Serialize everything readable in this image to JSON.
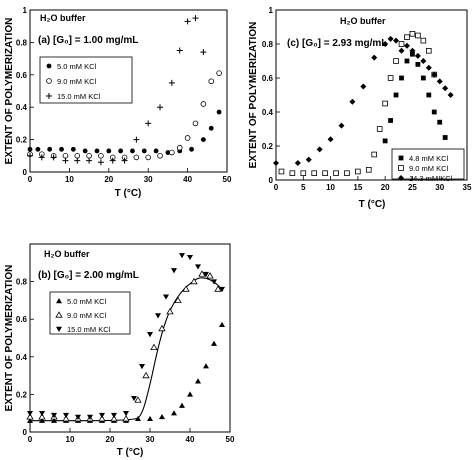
{
  "chart_data": [
    {
      "type": "scatter",
      "panel_label": "(a)",
      "buffer_label": "H₂O buffer",
      "concentration_label": "(a)  [G₀] = 1.00 mg/mL",
      "xlabel": "T (°C)",
      "ylabel": "EXTENT OF POLYMERIZATION",
      "xlim": [
        0,
        50
      ],
      "ylim": [
        0,
        1.0
      ],
      "xticks": [
        "0",
        "10",
        "20",
        "30",
        "40",
        "50"
      ],
      "yticks": [
        "0",
        "0.2",
        "0.4",
        "0.6",
        "0.8",
        "1"
      ],
      "legend_position": "center-left",
      "series": [
        {
          "name": "5.0 mM KCl",
          "marker": "filled-circle",
          "x": [
            0,
            2,
            5,
            8,
            11,
            14,
            17,
            20,
            23,
            26,
            29,
            32,
            35,
            38,
            41,
            44,
            46,
            48
          ],
          "y": [
            0.14,
            0.14,
            0.14,
            0.14,
            0.14,
            0.13,
            0.13,
            0.13,
            0.13,
            0.13,
            0.13,
            0.13,
            0.12,
            0.13,
            0.14,
            0.2,
            0.27,
            0.37
          ]
        },
        {
          "name": "9.0 mM KCl",
          "marker": "open-circle",
          "x": [
            0,
            3,
            6,
            9,
            12,
            15,
            18,
            21,
            24,
            27,
            30,
            33,
            36,
            38,
            40,
            42,
            44,
            46,
            48
          ],
          "y": [
            0.11,
            0.11,
            0.1,
            0.1,
            0.1,
            0.1,
            0.1,
            0.09,
            0.09,
            0.09,
            0.09,
            0.1,
            0.12,
            0.15,
            0.21,
            0.3,
            0.42,
            0.56,
            0.61
          ]
        },
        {
          "name": "15.0 mM KCl",
          "marker": "plus",
          "x": [
            0,
            3,
            6,
            9,
            12,
            15,
            18,
            21,
            24,
            27,
            30,
            33,
            36,
            38,
            40,
            42,
            44
          ],
          "y": [
            0.1,
            0.09,
            0.09,
            0.07,
            0.07,
            0.07,
            0.06,
            0.07,
            0.07,
            0.2,
            0.3,
            0.4,
            0.55,
            0.75,
            0.93,
            0.95,
            0.74
          ]
        }
      ]
    },
    {
      "type": "scatter",
      "panel_label": "(c)",
      "buffer_label": "H₂O buffer",
      "concentration_label": "(c)  [G₀] = 2.93 mg/mL",
      "xlabel": "T (°C)",
      "ylabel": "EXTENT OF POLYMERIZATION",
      "xlim": [
        0,
        35
      ],
      "ylim": [
        0,
        1.0
      ],
      "xticks": [
        "0",
        "5",
        "10",
        "15",
        "20",
        "25",
        "30",
        "35"
      ],
      "yticks": [
        "0",
        "0.2",
        "0.4",
        "0.6",
        "0.8",
        "1"
      ],
      "legend_position": "bottom-right",
      "series": [
        {
          "name": "4.8 mM KCl",
          "marker": "filled-square",
          "x": [
            20,
            21,
            22,
            23,
            24,
            25,
            26,
            27,
            28,
            29,
            30,
            31
          ],
          "y": [
            0.23,
            0.35,
            0.5,
            0.6,
            0.7,
            0.74,
            0.68,
            0.6,
            0.5,
            0.4,
            0.34,
            0.25
          ]
        },
        {
          "name": "9.0 mM KCl",
          "marker": "open-square",
          "x": [
            1,
            3,
            5,
            7,
            9,
            11,
            13,
            15,
            17,
            18,
            19,
            20,
            21,
            22,
            23,
            24,
            25,
            26,
            27,
            28,
            29
          ],
          "y": [
            0.05,
            0.04,
            0.04,
            0.04,
            0.04,
            0.04,
            0.04,
            0.05,
            0.06,
            0.15,
            0.3,
            0.45,
            0.6,
            0.7,
            0.8,
            0.84,
            0.86,
            0.85,
            0.82,
            0.76,
            0.62
          ]
        },
        {
          "name": "14.3 mM KCl",
          "marker": "filled-diamond",
          "x": [
            0,
            4,
            6,
            8,
            10,
            12,
            14,
            16,
            18,
            20,
            21,
            22,
            23,
            24,
            25,
            26,
            27,
            28,
            29,
            30,
            31,
            32
          ],
          "y": [
            0.1,
            0.1,
            0.12,
            0.18,
            0.24,
            0.32,
            0.46,
            0.55,
            0.72,
            0.8,
            0.83,
            0.82,
            0.76,
            0.79,
            0.76,
            0.73,
            0.7,
            0.66,
            0.62,
            0.58,
            0.54,
            0.5
          ]
        }
      ]
    },
    {
      "type": "scatter",
      "panel_label": "(b)",
      "buffer_label": "H₂O buffer",
      "concentration_label": "(b)  [G₀] = 2.00 mg/mL",
      "xlabel": "T (°C)",
      "ylabel": "EXTENT OF POLYMERIZATION",
      "xlim": [
        0,
        50
      ],
      "ylim": [
        0,
        1.0
      ],
      "xticks": [
        "0",
        "10",
        "20",
        "30",
        "40",
        "50"
      ],
      "yticks": [
        "0",
        "0.2",
        "0.4",
        "0.6",
        "0.8"
      ],
      "legend_position": "center-left",
      "fit_curve": {
        "x": [
          0,
          26,
          28,
          30,
          32,
          34,
          36,
          38,
          40,
          42,
          44,
          46,
          48
        ],
        "y": [
          0.06,
          0.06,
          0.09,
          0.25,
          0.45,
          0.6,
          0.69,
          0.75,
          0.79,
          0.82,
          0.82,
          0.8,
          0.76
        ]
      },
      "series": [
        {
          "name": "5.0 mM KCl",
          "marker": "filled-triangle-up",
          "x": [
            0,
            3,
            6,
            9,
            12,
            15,
            18,
            21,
            24,
            27,
            30,
            33,
            36,
            38,
            40,
            42,
            44,
            46,
            48
          ],
          "y": [
            0.06,
            0.06,
            0.06,
            0.06,
            0.06,
            0.06,
            0.06,
            0.06,
            0.06,
            0.07,
            0.07,
            0.08,
            0.1,
            0.14,
            0.2,
            0.27,
            0.35,
            0.47,
            0.57
          ]
        },
        {
          "name": "9.0 mM KCl",
          "marker": "open-triangle-up",
          "x": [
            0,
            3,
            6,
            9,
            12,
            15,
            18,
            21,
            24,
            27,
            29,
            31,
            33,
            35,
            37,
            39,
            41,
            43,
            45,
            47
          ],
          "y": [
            0.08,
            0.08,
            0.08,
            0.07,
            0.07,
            0.07,
            0.07,
            0.07,
            0.07,
            0.17,
            0.3,
            0.45,
            0.55,
            0.64,
            0.7,
            0.76,
            0.8,
            0.84,
            0.83,
            0.76
          ]
        },
        {
          "name": "15.0 mM KCl",
          "marker": "filled-triangle-down",
          "x": [
            0,
            3,
            6,
            9,
            12,
            15,
            18,
            21,
            24,
            26,
            28,
            30,
            32,
            34,
            36,
            38,
            40,
            42,
            44,
            46,
            48
          ],
          "y": [
            0.1,
            0.1,
            0.09,
            0.09,
            0.08,
            0.08,
            0.09,
            0.09,
            0.1,
            0.18,
            0.35,
            0.52,
            0.62,
            0.72,
            0.86,
            0.94,
            0.93,
            0.88,
            0.84,
            0.8,
            0.76
          ]
        }
      ]
    }
  ]
}
